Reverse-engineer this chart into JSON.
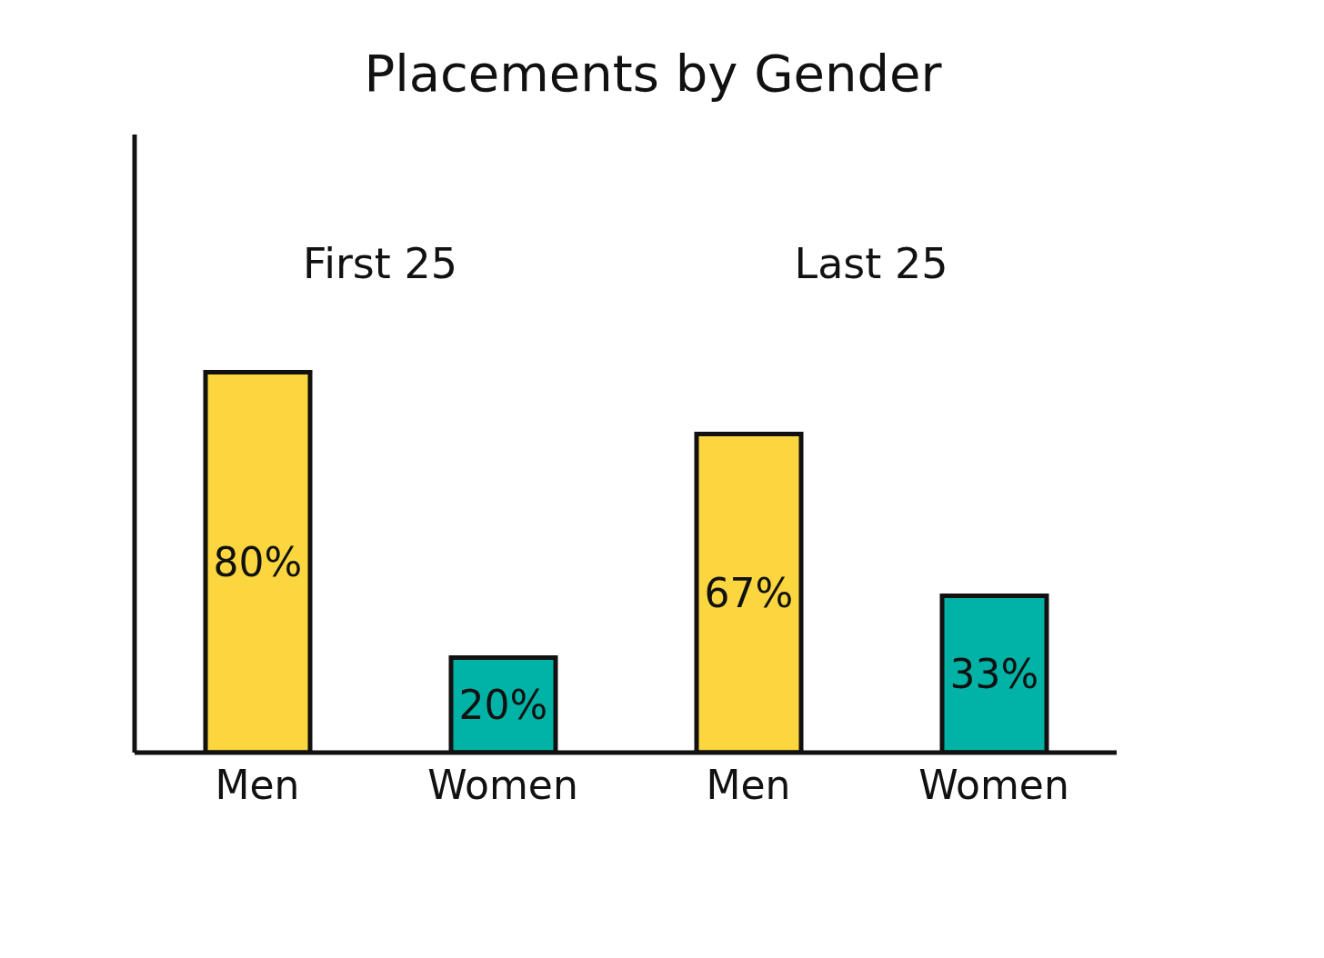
{
  "chart_data": {
    "type": "bar",
    "title": "Placements by Gender",
    "categories": [
      "Men",
      "Women",
      "Men",
      "Women"
    ],
    "values": [
      80,
      20,
      67,
      33
    ],
    "colors": [
      "#fbd63f",
      "#00b3a6",
      "#fbd63f",
      "#00b3a6"
    ],
    "value_labels": [
      "80%",
      "20%",
      "67%",
      "33%"
    ],
    "annotations": [
      "First 25",
      "Last 25"
    ],
    "ylim": [
      0,
      130
    ],
    "tick_labels": "x",
    "grid": false,
    "legend": false
  }
}
